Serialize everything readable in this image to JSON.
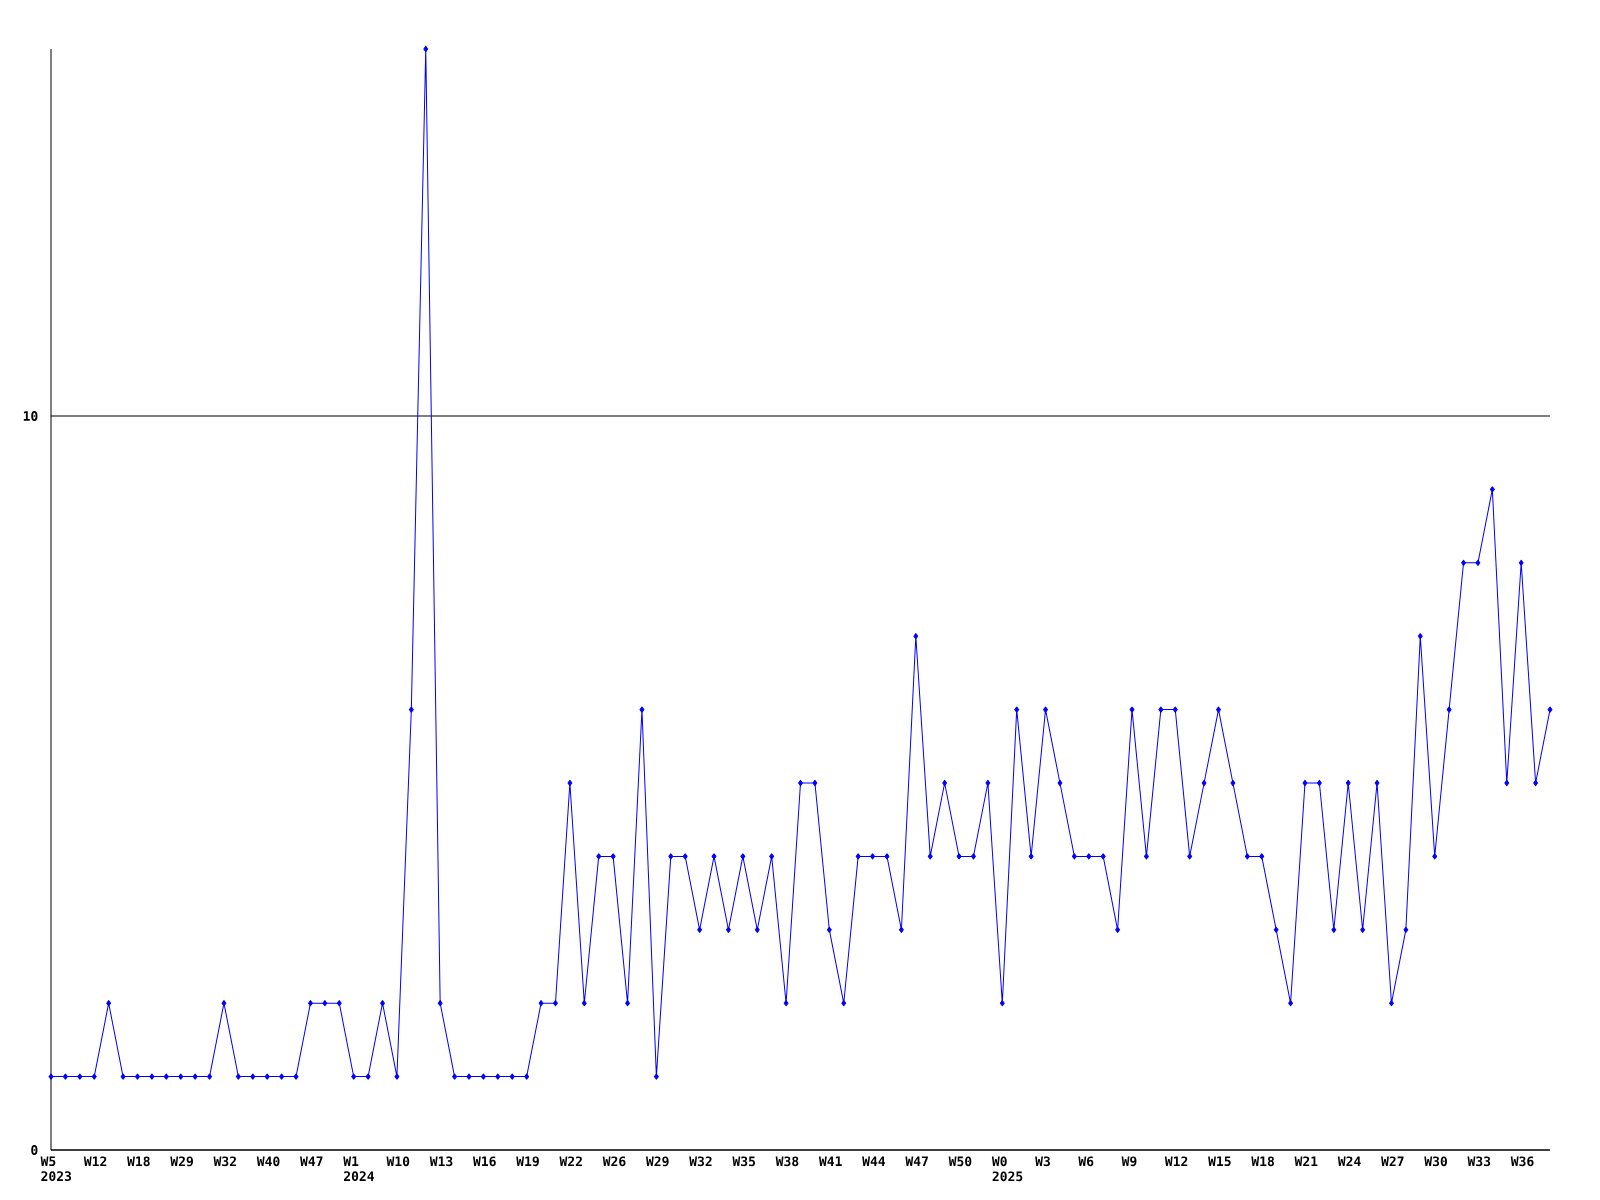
{
  "chart_data": {
    "type": "line",
    "categories": [
      "W5 2023",
      null,
      null,
      "W12",
      null,
      null,
      "W18",
      null,
      null,
      "W29",
      null,
      null,
      "W32",
      null,
      null,
      "W40",
      null,
      null,
      "W47",
      null,
      null,
      "W1 2024",
      null,
      null,
      "W10",
      null,
      null,
      "W13",
      null,
      null,
      "W16",
      null,
      null,
      "W19",
      null,
      null,
      "W22",
      null,
      null,
      "W26",
      null,
      null,
      "W29",
      null,
      null,
      "W32",
      null,
      null,
      "W35",
      null,
      null,
      "W38",
      null,
      null,
      "W41",
      null,
      null,
      "W44",
      null,
      null,
      "W47",
      null,
      null,
      "W50",
      null,
      null,
      "W0 2025",
      null,
      null,
      "W3",
      null,
      null,
      "W6",
      null,
      null,
      "W9",
      null,
      null,
      "W12",
      null,
      null,
      "W15",
      null,
      null,
      "W18",
      null,
      null,
      "W21",
      null,
      null,
      "W24",
      null,
      null,
      "W27",
      null,
      null,
      "W30",
      null,
      null,
      "W33",
      null,
      null,
      "W36",
      null,
      null
    ],
    "values": [
      1,
      1,
      1,
      1,
      2,
      1,
      1,
      1,
      1,
      1,
      1,
      1,
      2,
      1,
      1,
      1,
      1,
      1,
      2,
      2,
      2,
      1,
      1,
      2,
      1,
      6,
      15,
      2,
      1,
      1,
      1,
      1,
      1,
      1,
      2,
      2,
      5,
      2,
      4,
      4,
      2,
      6,
      1,
      4,
      4,
      3,
      4,
      3,
      4,
      3,
      4,
      2,
      5,
      5,
      3,
      2,
      4,
      4,
      4,
      3,
      7,
      4,
      5,
      4,
      4,
      5,
      2,
      6,
      4,
      6,
      5,
      4,
      4,
      4,
      3,
      6,
      4,
      6,
      6,
      4,
      5,
      6,
      5,
      4,
      4,
      3,
      2,
      5,
      5,
      3,
      5,
      3,
      5,
      2,
      3,
      7,
      4,
      6,
      8,
      8,
      9,
      5,
      8,
      5,
      6
    ],
    "color": "#0000ff",
    "ylim": [
      0,
      15
    ],
    "yticks": [
      0,
      10
    ],
    "grid": "y",
    "marker": "diamond",
    "line_style": "solid"
  }
}
